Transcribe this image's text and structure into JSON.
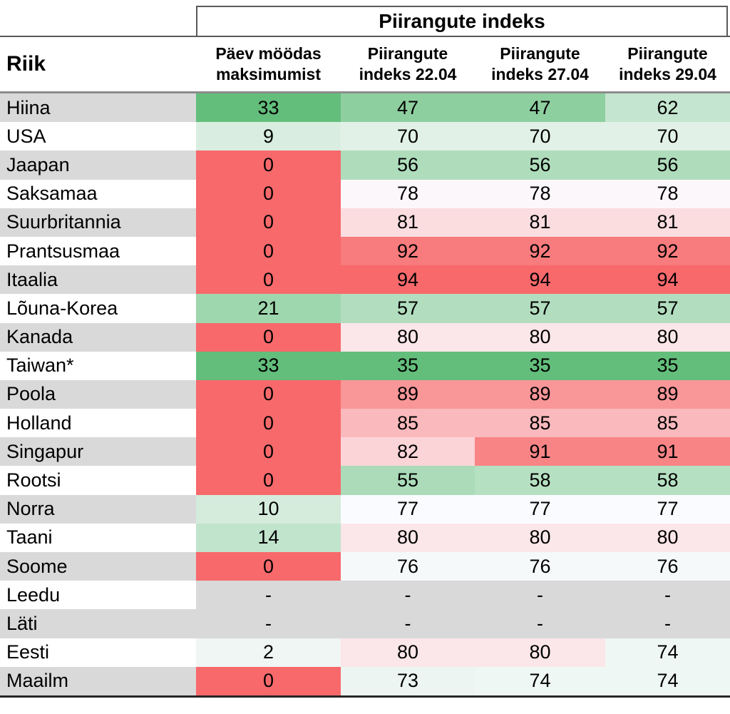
{
  "title": {
    "group_header": "Piirangute indeks"
  },
  "header": {
    "country_col": "Riik",
    "data_cols": [
      {
        "line1": "Päev möödas",
        "line2": "maksimumist"
      },
      {
        "line1": "Piirangute",
        "line2": "indeks 22.04"
      },
      {
        "line1": "Piirangute",
        "line2": "indeks 27.04"
      },
      {
        "line1": "Piirangute",
        "line2": "indeks 29.04"
      }
    ]
  },
  "colors": {
    "stripe_gray": "#D9D9D9",
    "na_cell_gray": "#D9D9D9",
    "scale_green_min": "#63BE7B",
    "scale_white_mid": "#FCFCFF",
    "scale_red_max": "#F8696B",
    "title_border": "#595959",
    "header_rule": "#8C8C8C",
    "bottom_rule": "#262626",
    "text": "#000000"
  },
  "table": {
    "rows": [
      {
        "country": "Hiina",
        "striped": true,
        "values": [
          {
            "text": "33",
            "bg": "#63BE7B"
          },
          {
            "text": "47",
            "bg": "#8ECFA0"
          },
          {
            "text": "47",
            "bg": "#8ECFA0"
          },
          {
            "text": "62",
            "bg": "#C4E5CF"
          }
        ]
      },
      {
        "country": "USA",
        "striped": false,
        "values": [
          {
            "text": "9",
            "bg": "#D9EEE1"
          },
          {
            "text": "70",
            "bg": "#E1F1E8"
          },
          {
            "text": "70",
            "bg": "#E1F1E8"
          },
          {
            "text": "70",
            "bg": "#E1F1E8"
          }
        ]
      },
      {
        "country": "Jaapan",
        "striped": true,
        "values": [
          {
            "text": "0",
            "bg": "#F8696B"
          },
          {
            "text": "56",
            "bg": "#AFDDBC"
          },
          {
            "text": "56",
            "bg": "#AFDDBC"
          },
          {
            "text": "56",
            "bg": "#AFDDBC"
          }
        ]
      },
      {
        "country": "Saksamaa",
        "striped": false,
        "values": [
          {
            "text": "0",
            "bg": "#F8696B"
          },
          {
            "text": "78",
            "bg": "#FCF7FA"
          },
          {
            "text": "78",
            "bg": "#FCF7FA"
          },
          {
            "text": "78",
            "bg": "#FCF7FA"
          }
        ]
      },
      {
        "country": "Suurbritannia",
        "striped": true,
        "values": [
          {
            "text": "0",
            "bg": "#F8696B"
          },
          {
            "text": "81",
            "bg": "#FBDDE0"
          },
          {
            "text": "81",
            "bg": "#FBDDE0"
          },
          {
            "text": "81",
            "bg": "#FBDDE0"
          }
        ]
      },
      {
        "country": "Prantsusmaa",
        "striped": false,
        "values": [
          {
            "text": "0",
            "bg": "#F8696B"
          },
          {
            "text": "92",
            "bg": "#F87B7D"
          },
          {
            "text": "92",
            "bg": "#F87B7D"
          },
          {
            "text": "92",
            "bg": "#F87B7D"
          }
        ]
      },
      {
        "country": "Itaalia",
        "striped": true,
        "values": [
          {
            "text": "0",
            "bg": "#F8696B"
          },
          {
            "text": "94",
            "bg": "#F8696B"
          },
          {
            "text": "94",
            "bg": "#F8696B"
          },
          {
            "text": "94",
            "bg": "#F8696B"
          }
        ]
      },
      {
        "country": "Lõuna-Korea",
        "striped": false,
        "values": [
          {
            "text": "21",
            "bg": "#9ED6AE"
          },
          {
            "text": "57",
            "bg": "#B2DEBF"
          },
          {
            "text": "57",
            "bg": "#B2DEBF"
          },
          {
            "text": "57",
            "bg": "#B2DEBF"
          }
        ]
      },
      {
        "country": "Kanada",
        "striped": true,
        "values": [
          {
            "text": "0",
            "bg": "#F8696B"
          },
          {
            "text": "80",
            "bg": "#FBE6E9"
          },
          {
            "text": "80",
            "bg": "#FBE6E9"
          },
          {
            "text": "80",
            "bg": "#FBE6E9"
          }
        ]
      },
      {
        "country": "Taiwan*",
        "striped": false,
        "values": [
          {
            "text": "33",
            "bg": "#63BE7B"
          },
          {
            "text": "35",
            "bg": "#63BE7B"
          },
          {
            "text": "35",
            "bg": "#63BE7B"
          },
          {
            "text": "35",
            "bg": "#63BE7B"
          }
        ]
      },
      {
        "country": "Poola",
        "striped": true,
        "values": [
          {
            "text": "0",
            "bg": "#F8696B"
          },
          {
            "text": "89",
            "bg": "#F99698"
          },
          {
            "text": "89",
            "bg": "#F99698"
          },
          {
            "text": "89",
            "bg": "#F99698"
          }
        ]
      },
      {
        "country": "Holland",
        "striped": false,
        "values": [
          {
            "text": "0",
            "bg": "#F8696B"
          },
          {
            "text": "85",
            "bg": "#FAB9BC"
          },
          {
            "text": "85",
            "bg": "#FAB9BC"
          },
          {
            "text": "85",
            "bg": "#FAB9BC"
          }
        ]
      },
      {
        "country": "Singapur",
        "striped": true,
        "values": [
          {
            "text": "0",
            "bg": "#F8696B"
          },
          {
            "text": "82",
            "bg": "#FBD4D7"
          },
          {
            "text": "91",
            "bg": "#F98486"
          },
          {
            "text": "91",
            "bg": "#F98486"
          }
        ]
      },
      {
        "country": "Rootsi",
        "striped": false,
        "values": [
          {
            "text": "0",
            "bg": "#F8696B"
          },
          {
            "text": "55",
            "bg": "#ABDBB9"
          },
          {
            "text": "58",
            "bg": "#B6E0C2"
          },
          {
            "text": "58",
            "bg": "#B6E0C2"
          }
        ]
      },
      {
        "country": "Norra",
        "striped": true,
        "values": [
          {
            "text": "10",
            "bg": "#D5ECDD"
          },
          {
            "text": "77",
            "bg": "#FAFBFE"
          },
          {
            "text": "77",
            "bg": "#FAFBFE"
          },
          {
            "text": "77",
            "bg": "#FAFBFE"
          }
        ]
      },
      {
        "country": "Taani",
        "striped": false,
        "values": [
          {
            "text": "14",
            "bg": "#C1E4CC"
          },
          {
            "text": "80",
            "bg": "#FBE6E9"
          },
          {
            "text": "80",
            "bg": "#FBE6E9"
          },
          {
            "text": "80",
            "bg": "#FBE6E9"
          }
        ]
      },
      {
        "country": "Soome",
        "striped": true,
        "values": [
          {
            "text": "0",
            "bg": "#F8696B"
          },
          {
            "text": "76",
            "bg": "#F6F9FA"
          },
          {
            "text": "76",
            "bg": "#F6F9FA"
          },
          {
            "text": "76",
            "bg": "#F6F9FA"
          }
        ]
      },
      {
        "country": "Leedu",
        "striped": false,
        "values": [
          {
            "text": "-",
            "bg": "#D9D9D9"
          },
          {
            "text": "-",
            "bg": "#D9D9D9"
          },
          {
            "text": "-",
            "bg": "#D9D9D9"
          },
          {
            "text": "-",
            "bg": "#D9D9D9"
          }
        ]
      },
      {
        "country": "Läti",
        "striped": true,
        "values": [
          {
            "text": "-",
            "bg": "#D9D9D9"
          },
          {
            "text": "-",
            "bg": "#D9D9D9"
          },
          {
            "text": "-",
            "bg": "#D9D9D9"
          },
          {
            "text": "-",
            "bg": "#D9D9D9"
          }
        ]
      },
      {
        "country": "Eesti",
        "striped": false,
        "values": [
          {
            "text": "2",
            "bg": "#EFF6F4"
          },
          {
            "text": "80",
            "bg": "#FBE6E9"
          },
          {
            "text": "80",
            "bg": "#FBE6E9"
          },
          {
            "text": "74",
            "bg": "#EFF7F4"
          }
        ]
      },
      {
        "country": "Maailm",
        "striped": true,
        "values": [
          {
            "text": "0",
            "bg": "#F8696B"
          },
          {
            "text": "73",
            "bg": "#ECF5F1"
          },
          {
            "text": "74",
            "bg": "#EFF7F4"
          },
          {
            "text": "74",
            "bg": "#EFF7F4"
          }
        ]
      }
    ]
  },
  "chart_data": {
    "type": "table",
    "title": "Piirangute indeks",
    "columns": [
      "Riik",
      "Päev möödas maksimumist",
      "Piirangute indeks 22.04",
      "Piirangute indeks 27.04",
      "Piirangute indeks 29.04"
    ],
    "rows": [
      [
        "Hiina",
        33,
        47,
        47,
        62
      ],
      [
        "USA",
        9,
        70,
        70,
        70
      ],
      [
        "Jaapan",
        0,
        56,
        56,
        56
      ],
      [
        "Saksamaa",
        0,
        78,
        78,
        78
      ],
      [
        "Suurbritannia",
        0,
        81,
        81,
        81
      ],
      [
        "Prantsusmaa",
        0,
        92,
        92,
        92
      ],
      [
        "Itaalia",
        0,
        94,
        94,
        94
      ],
      [
        "Lõuna-Korea",
        21,
        57,
        57,
        57
      ],
      [
        "Kanada",
        0,
        80,
        80,
        80
      ],
      [
        "Taiwan*",
        33,
        35,
        35,
        35
      ],
      [
        "Poola",
        0,
        89,
        89,
        89
      ],
      [
        "Holland",
        0,
        85,
        85,
        85
      ],
      [
        "Singapur",
        0,
        82,
        91,
        91
      ],
      [
        "Rootsi",
        0,
        55,
        58,
        58
      ],
      [
        "Norra",
        10,
        77,
        77,
        77
      ],
      [
        "Taani",
        14,
        80,
        80,
        80
      ],
      [
        "Soome",
        0,
        76,
        76,
        76
      ],
      [
        "Leedu",
        "-",
        "-",
        "-",
        "-"
      ],
      [
        "Läti",
        "-",
        "-",
        "-",
        "-"
      ],
      [
        "Eesti",
        2,
        80,
        80,
        74
      ],
      [
        "Maailm",
        0,
        73,
        74,
        74
      ]
    ],
    "layout_hints": {
      "heatmap": "3-color scale: low=green #63BE7B, mid=white #FCFCFF, high=red #F8696B (index columns min 35 / mid ~77 / max 94; days column 0=red, 33=green)",
      "country_column_striping": "alternating #D9D9D9 / white",
      "missing_values_bg": "#D9D9D9"
    }
  }
}
